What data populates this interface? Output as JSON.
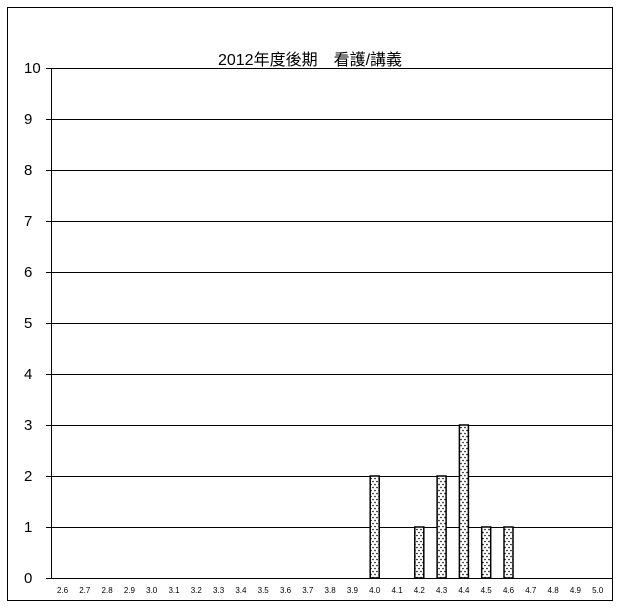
{
  "chart_data": {
    "type": "bar",
    "title": "2012年度後期　看護/講義",
    "xlabel": "",
    "ylabel": "",
    "categories": [
      "2.6",
      "2.7",
      "2.8",
      "2.9",
      "3.0",
      "3.1",
      "3.2",
      "3.3",
      "3.4",
      "3.5",
      "3.6",
      "3.7",
      "3.8",
      "3.9",
      "4.0",
      "4.1",
      "4.2",
      "4.3",
      "4.4",
      "4.5",
      "4.6",
      "4.7",
      "4.8",
      "4.9",
      "5.0"
    ],
    "values": [
      0,
      0,
      0,
      0,
      0,
      0,
      0,
      0,
      0,
      0,
      0,
      0,
      0,
      0,
      2,
      0,
      1,
      2,
      3,
      1,
      1,
      0,
      0,
      0,
      0
    ],
    "ylim": [
      0,
      10
    ],
    "yticks": [
      "0",
      "1",
      "2",
      "3",
      "4",
      "5",
      "6",
      "7",
      "8",
      "9",
      "10"
    ],
    "grid": true,
    "legend": "none",
    "bar_pattern": "dotted",
    "colors": {
      "bar_fill": "#ffffff",
      "bar_dots": "#000000",
      "grid": "#000000",
      "frame": "#000000"
    }
  }
}
